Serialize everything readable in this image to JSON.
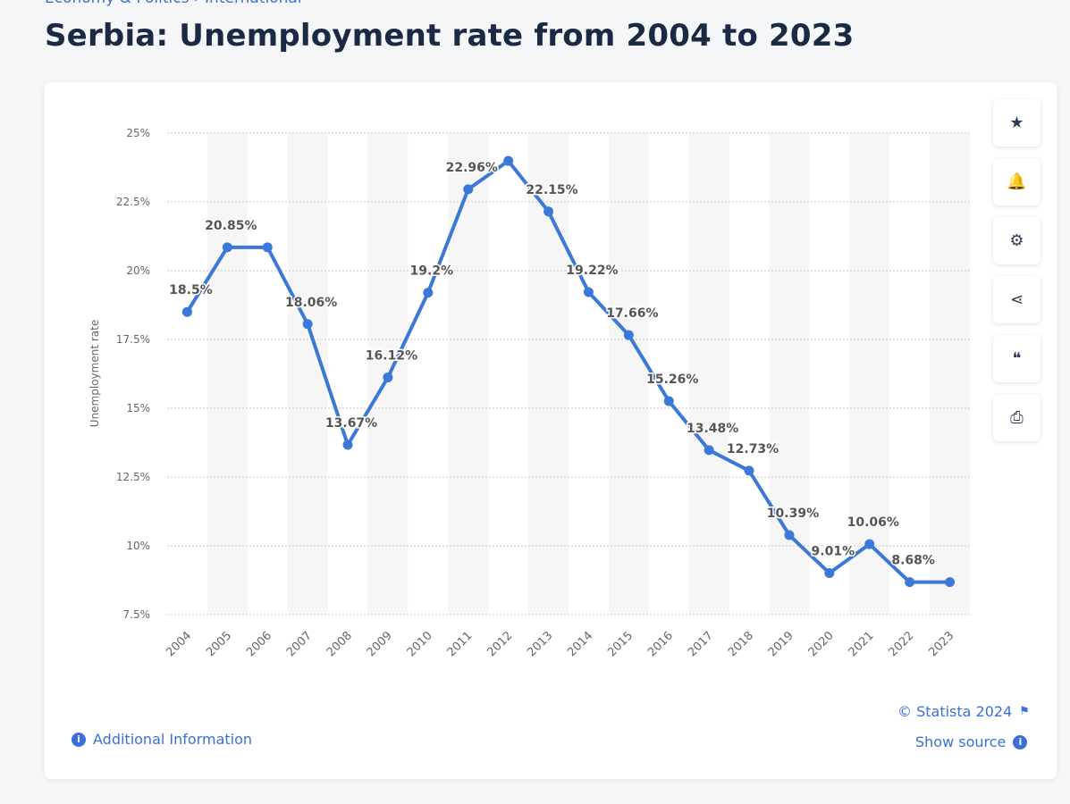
{
  "breadcrumb": "Economy & Politics › International",
  "title": "Serbia: Unemployment rate from 2004 to 2023",
  "tools": [
    {
      "icon": "star-icon",
      "glyph": "★"
    },
    {
      "icon": "bell-icon",
      "glyph": "🔔"
    },
    {
      "icon": "gear-icon",
      "glyph": "⚙"
    },
    {
      "icon": "share-icon",
      "glyph": "⋖"
    },
    {
      "icon": "quote-icon",
      "glyph": "❝"
    },
    {
      "icon": "print-icon",
      "glyph": "⎙"
    }
  ],
  "footer": {
    "additional_info": "Additional Information",
    "copyright": "© Statista 2024",
    "show_source": "Show source"
  },
  "chart_data": {
    "type": "line",
    "ylabel": "Unemployment rate",
    "ylim": [
      7.5,
      25
    ],
    "yticks": [
      "7.5%",
      "10%",
      "12.5%",
      "15%",
      "17.5%",
      "20%",
      "22.5%",
      "25%"
    ],
    "ytick_values": [
      7.5,
      10,
      12.5,
      15,
      17.5,
      20,
      22.5,
      25
    ],
    "grid": true,
    "color": "#3b78d8",
    "categories": [
      "2004",
      "2005",
      "2006",
      "2007",
      "2008",
      "2009",
      "2010",
      "2011",
      "2012",
      "2013",
      "2014",
      "2015",
      "2016",
      "2017",
      "2018",
      "2019",
      "2020",
      "2021",
      "2022",
      "2023"
    ],
    "values": [
      18.5,
      20.85,
      20.85,
      18.06,
      13.67,
      16.12,
      19.2,
      22.96,
      23.99,
      22.15,
      19.22,
      17.66,
      15.26,
      13.48,
      12.73,
      10.39,
      9.01,
      10.06,
      8.68,
      8.68
    ],
    "labels": [
      "18.5%",
      "20.85%",
      null,
      "18.06%",
      "13.67%",
      "16.12%",
      "19.2%",
      "22.96%",
      null,
      "22.15%",
      "19.22%",
      "17.66%",
      "15.26%",
      "13.48%",
      "12.73%",
      "10.39%",
      "9.01%",
      "10.06%",
      "8.68%",
      null
    ]
  }
}
